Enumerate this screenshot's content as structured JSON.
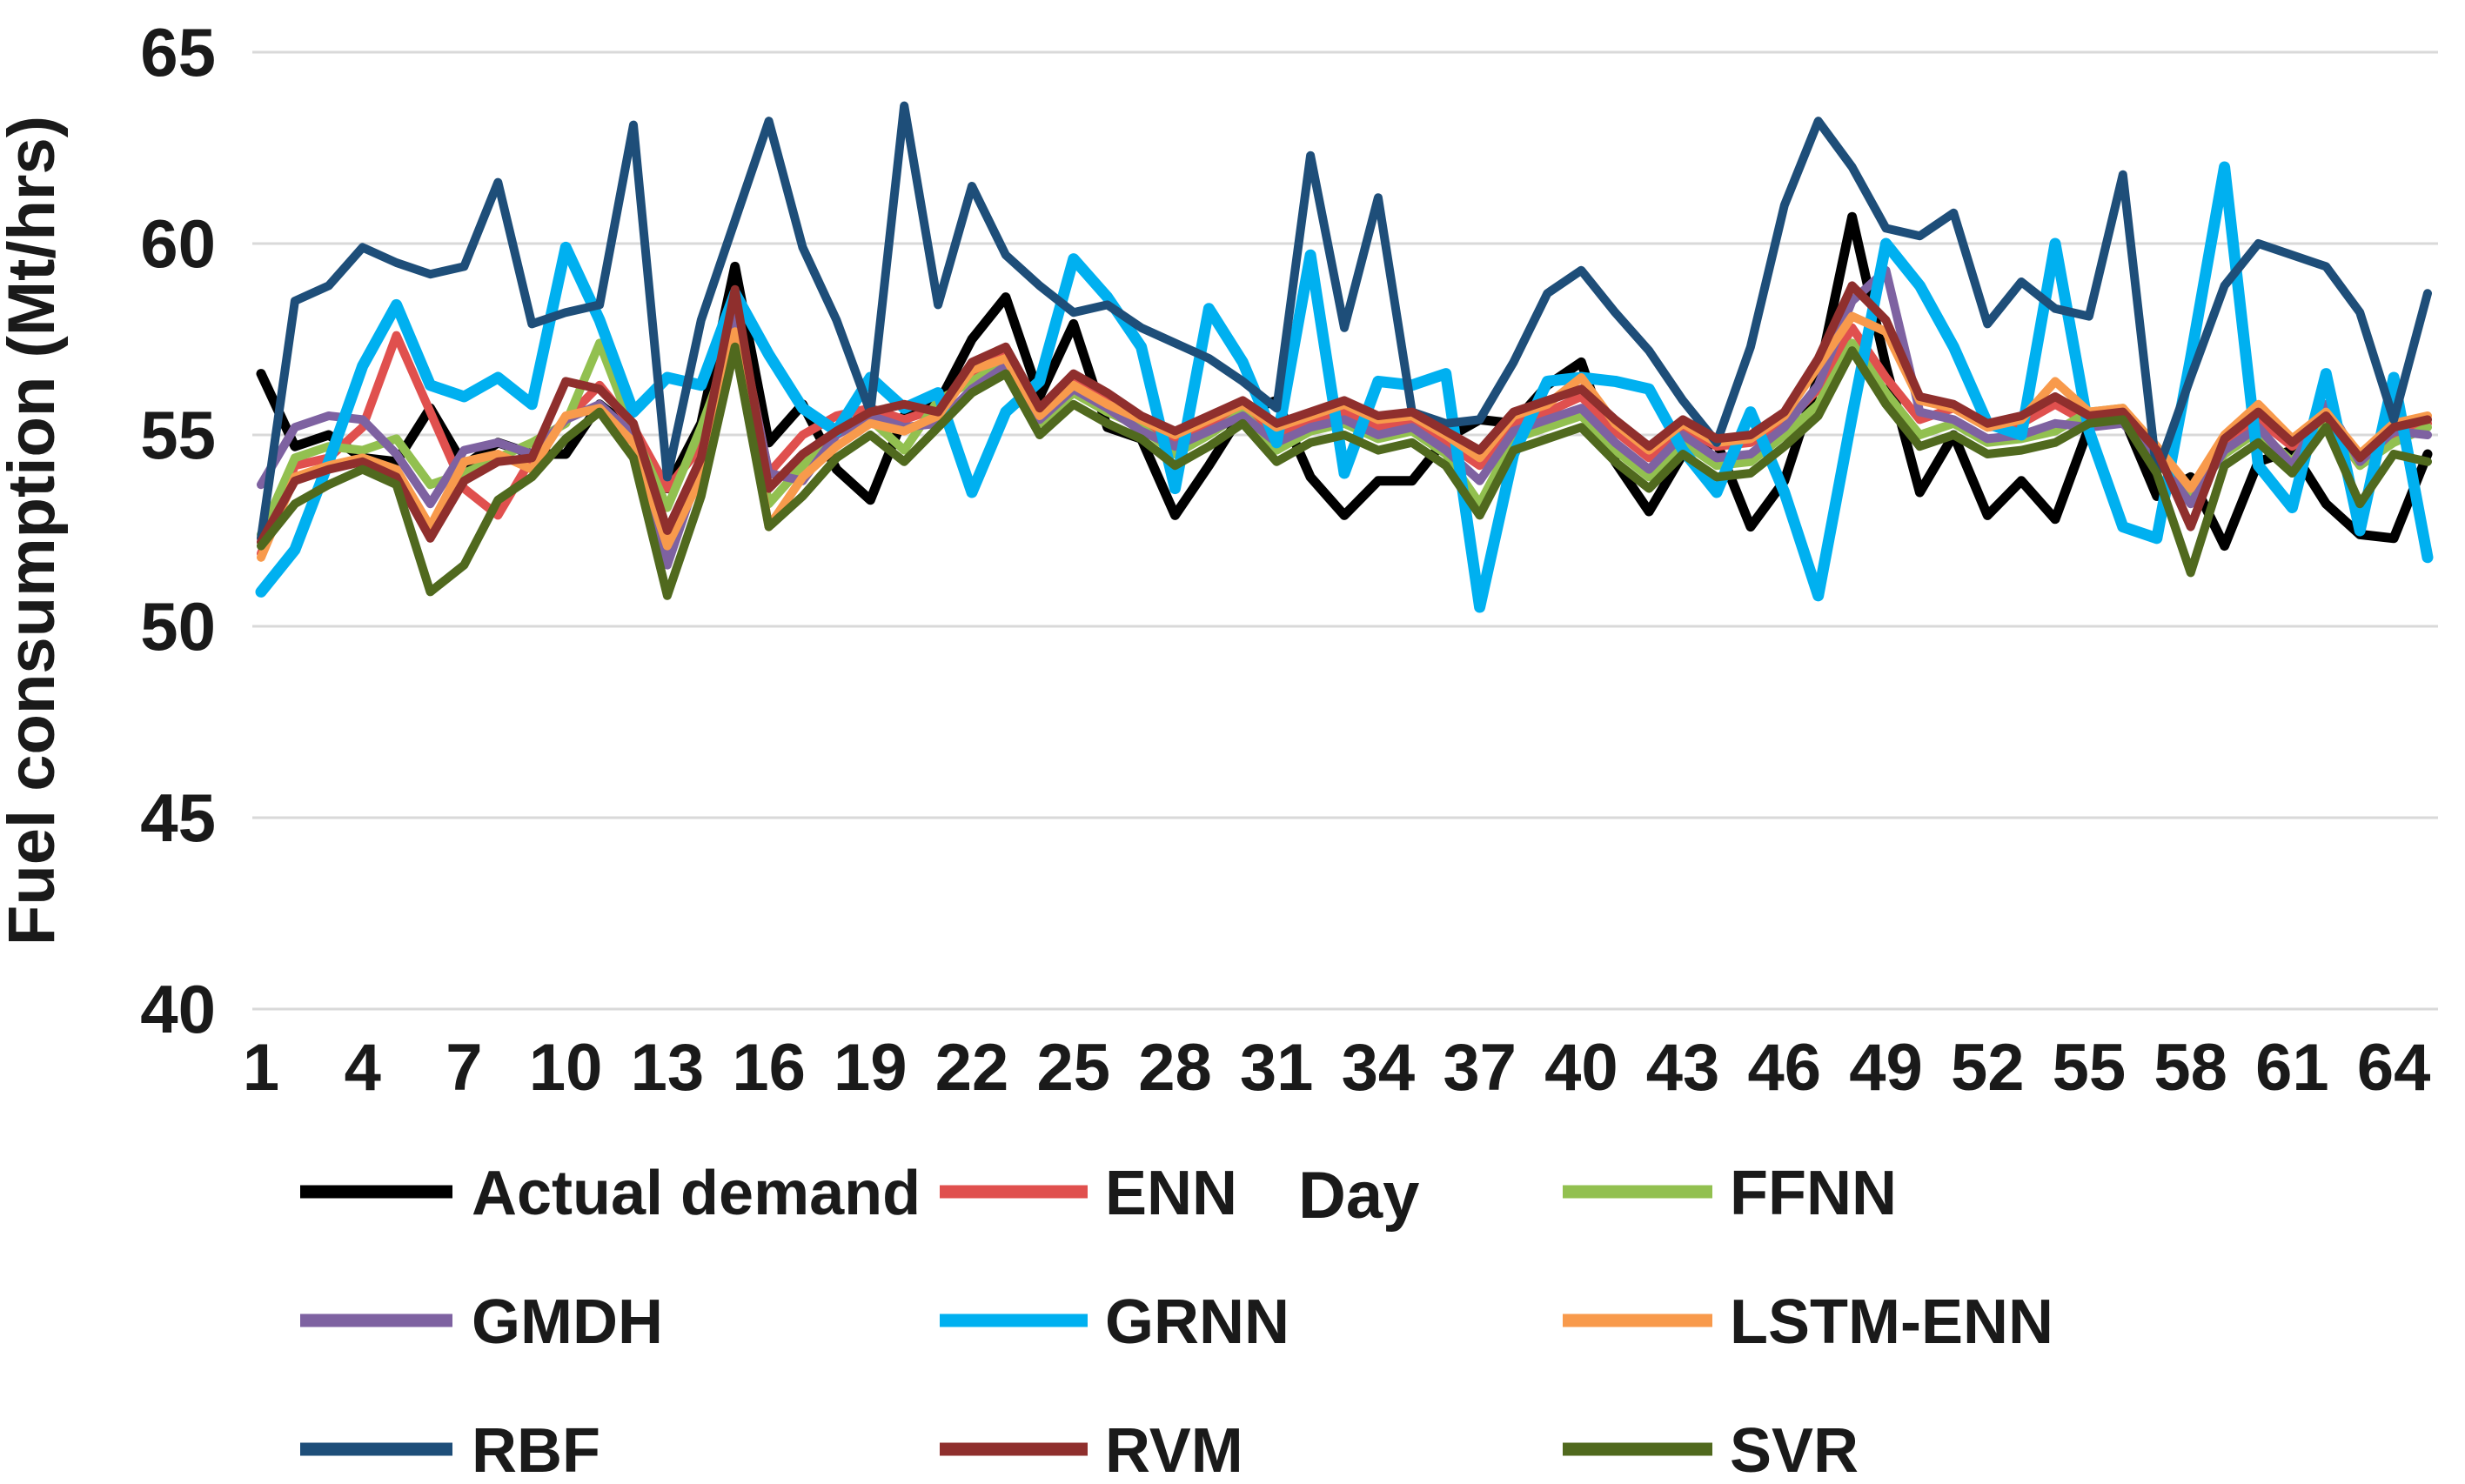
{
  "chart_data": {
    "type": "line",
    "title": "",
    "xlabel": "Day",
    "ylabel": "Fuel consumption (Mt/hrs)",
    "ylim": [
      40,
      65
    ],
    "yticks": [
      65,
      60,
      55,
      50,
      45,
      40
    ],
    "xticks": [
      1,
      4,
      7,
      10,
      13,
      16,
      19,
      22,
      25,
      28,
      31,
      34,
      37,
      40,
      43,
      46,
      49,
      52,
      55,
      58,
      61,
      64
    ],
    "x_start": 1,
    "x_end": 65,
    "grid": "horizontal-only",
    "legend_position": "bottom",
    "grid_color": "#d9d9d9",
    "series": [
      {
        "name": "Actual demand",
        "color": "#000000",
        "width": 11,
        "values": [
          56.6,
          54.7,
          55.0,
          54.4,
          54.3,
          55.7,
          54.2,
          54.8,
          54.5,
          54.5,
          55.8,
          55.1,
          53.6,
          55.3,
          59.4,
          54.8,
          55.8,
          54.1,
          53.3,
          55.5,
          55.8,
          57.5,
          58.6,
          56.0,
          57.9,
          55.2,
          54.9,
          52.9,
          54.2,
          55.6,
          55.9,
          53.9,
          52.9,
          53.8,
          53.8,
          54.9,
          55.4,
          55.3,
          56.3,
          56.9,
          54.3,
          53.0,
          54.5,
          54.8,
          52.6,
          53.8,
          56.5,
          60.7,
          56.8,
          53.5,
          55.0,
          52.9,
          53.8,
          52.8,
          55.2,
          55.5,
          53.4,
          53.9,
          52.1,
          54.3,
          54.6,
          53.2,
          52.4,
          52.3,
          54.5
        ]
      },
      {
        "name": "ENN",
        "color": "#E0504E",
        "width": 10,
        "values": [
          51.9,
          54.2,
          54.4,
          55.2,
          57.6,
          55.6,
          53.6,
          52.9,
          54.4,
          55.4,
          56.3,
          55.2,
          53.6,
          54.7,
          58.4,
          54.0,
          55.0,
          55.5,
          55.7,
          55.4,
          55.7,
          56.6,
          57.2,
          55.6,
          56.5,
          56.0,
          55.3,
          54.9,
          55.2,
          55.6,
          55.0,
          55.3,
          55.6,
          55.2,
          55.3,
          54.8,
          54.2,
          55.3,
          55.6,
          56.0,
          55.1,
          54.4,
          55.2,
          54.7,
          54.8,
          55.3,
          56.2,
          57.8,
          56.5,
          55.4,
          55.7,
          55.2,
          55.3,
          55.8,
          55.3,
          55.4,
          54.5,
          53.3,
          54.8,
          55.4,
          54.7,
          55.4,
          54.2,
          55.0,
          55.3
        ]
      },
      {
        "name": "FFNN",
        "color": "#92C050",
        "width": 10,
        "values": [
          52.4,
          54.4,
          54.7,
          54.6,
          54.9,
          53.7,
          54.0,
          54.4,
          54.8,
          55.3,
          57.4,
          55.1,
          53.1,
          55.2,
          57.6,
          53.2,
          54.2,
          55.1,
          55.4,
          54.6,
          55.9,
          56.4,
          56.9,
          55.3,
          56.1,
          55.6,
          55.2,
          54.5,
          55.0,
          55.6,
          54.6,
          55.1,
          55.3,
          54.9,
          55.1,
          54.5,
          53.2,
          54.9,
          55.2,
          55.5,
          54.6,
          53.9,
          54.8,
          54.2,
          54.3,
          55.0,
          55.8,
          57.4,
          56.1,
          55.0,
          55.3,
          54.8,
          54.9,
          55.1,
          55.6,
          55.7,
          54.3,
          53.4,
          54.5,
          55.1,
          54.3,
          55.5,
          54.2,
          54.8,
          55.2
        ]
      },
      {
        "name": "GMDH",
        "color": "#7E62A1",
        "width": 10,
        "values": [
          53.7,
          55.2,
          55.5,
          55.4,
          54.5,
          53.2,
          54.6,
          54.8,
          54.5,
          55.4,
          55.8,
          55.0,
          51.6,
          54.2,
          58.3,
          54.0,
          53.8,
          55.0,
          55.5,
          55.2,
          55.3,
          56.2,
          56.8,
          55.4,
          56.2,
          55.7,
          55.1,
          54.7,
          55.1,
          55.5,
          54.8,
          55.2,
          55.4,
          55.0,
          55.2,
          54.6,
          53.8,
          55.1,
          55.4,
          55.7,
          54.8,
          54.1,
          55.0,
          54.4,
          54.5,
          55.2,
          56.3,
          58.5,
          59.3,
          55.6,
          55.4,
          54.9,
          55.0,
          55.3,
          55.2,
          55.3,
          54.4,
          53.2,
          54.6,
          55.2,
          54.2,
          55.8,
          54.3,
          55.1,
          55.0
        ]
      },
      {
        "name": "GRNN",
        "color": "#00B0F0",
        "width": 13,
        "values": [
          50.9,
          52.0,
          54.3,
          56.8,
          58.4,
          56.3,
          56.0,
          56.5,
          55.8,
          59.9,
          58.0,
          55.6,
          56.5,
          56.3,
          58.7,
          57.1,
          55.7,
          55.1,
          56.5,
          55.7,
          56.1,
          53.5,
          55.6,
          56.4,
          59.6,
          58.6,
          57.3,
          53.6,
          58.3,
          56.9,
          54.8,
          59.7,
          54.0,
          56.4,
          56.3,
          56.6,
          50.5,
          54.5,
          56.4,
          56.5,
          56.4,
          56.2,
          54.6,
          53.5,
          55.6,
          53.5,
          50.8,
          55.5,
          60.0,
          58.9,
          57.3,
          55.3,
          55.0,
          60.0,
          55.1,
          52.6,
          52.3,
          57.0,
          62.0,
          54.2,
          53.1,
          56.6,
          52.5,
          56.5,
          51.8
        ]
      },
      {
        "name": "LSTM-ENN",
        "color": "#F89A4C",
        "width": 10,
        "values": [
          51.8,
          53.9,
          54.2,
          54.4,
          54.1,
          52.6,
          54.3,
          54.5,
          54.1,
          55.5,
          55.7,
          54.8,
          52.1,
          53.9,
          57.7,
          52.6,
          53.9,
          54.7,
          55.3,
          55.1,
          55.5,
          56.7,
          57.0,
          55.5,
          56.3,
          55.8,
          55.4,
          55.0,
          55.4,
          55.8,
          55.2,
          55.5,
          55.8,
          55.4,
          55.5,
          55.0,
          54.4,
          55.5,
          55.8,
          56.5,
          55.3,
          54.6,
          55.3,
          54.8,
          54.9,
          55.5,
          56.8,
          58.1,
          57.7,
          55.9,
          55.7,
          55.2,
          55.4,
          56.4,
          55.6,
          55.7,
          54.7,
          53.6,
          55.0,
          55.8,
          54.9,
          55.6,
          54.5,
          55.3,
          55.5
        ]
      },
      {
        "name": "RBF",
        "color": "#1E4E79",
        "width": 10,
        "values": [
          52.3,
          58.5,
          58.9,
          59.9,
          59.5,
          59.2,
          59.4,
          61.6,
          57.9,
          58.2,
          58.4,
          63.1,
          53.9,
          58.0,
          60.6,
          63.2,
          59.9,
          58.0,
          55.6,
          63.6,
          58.4,
          61.5,
          59.7,
          58.9,
          58.2,
          58.4,
          57.8,
          57.4,
          57.0,
          56.4,
          55.7,
          62.3,
          57.8,
          61.2,
          55.6,
          55.3,
          55.4,
          56.9,
          58.7,
          59.3,
          58.2,
          57.2,
          55.9,
          54.8,
          57.3,
          61.0,
          63.2,
          62.0,
          60.4,
          60.2,
          60.8,
          57.9,
          59.0,
          58.3,
          58.1,
          61.8,
          54.0,
          56.5,
          58.9,
          60.0,
          59.7,
          59.4,
          58.2,
          55.4,
          58.7
        ]
      },
      {
        "name": "RVM",
        "color": "#8F2F2D",
        "width": 10,
        "values": [
          52.2,
          53.8,
          54.1,
          54.3,
          53.9,
          52.3,
          53.8,
          54.3,
          54.4,
          56.4,
          56.2,
          55.3,
          52.5,
          54.4,
          58.8,
          53.6,
          54.5,
          55.1,
          55.6,
          55.8,
          55.6,
          56.9,
          57.3,
          55.7,
          56.6,
          56.1,
          55.5,
          55.1,
          55.5,
          55.9,
          55.3,
          55.6,
          55.9,
          55.5,
          55.6,
          55.1,
          54.6,
          55.6,
          55.9,
          56.2,
          55.4,
          54.7,
          55.4,
          54.9,
          55.0,
          55.6,
          57.0,
          58.9,
          58.0,
          56.0,
          55.8,
          55.3,
          55.5,
          56.0,
          55.5,
          55.6,
          54.6,
          52.6,
          54.9,
          55.6,
          54.8,
          55.5,
          54.4,
          55.2,
          55.4
        ]
      },
      {
        "name": "SVR",
        "color": "#50691E",
        "width": 10,
        "values": [
          52.1,
          53.2,
          53.7,
          54.1,
          53.7,
          50.9,
          51.6,
          53.3,
          53.9,
          54.9,
          55.6,
          54.4,
          50.8,
          53.4,
          57.3,
          52.6,
          53.4,
          54.4,
          55.0,
          54.3,
          55.2,
          56.1,
          56.6,
          55.0,
          55.8,
          55.3,
          54.9,
          54.2,
          54.7,
          55.3,
          54.3,
          54.8,
          55.0,
          54.6,
          54.8,
          54.2,
          52.9,
          54.6,
          54.9,
          55.2,
          54.3,
          53.6,
          54.5,
          53.9,
          54.0,
          54.7,
          55.5,
          57.2,
          55.8,
          54.7,
          55.0,
          54.5,
          54.6,
          54.8,
          55.3,
          55.4,
          54.0,
          51.4,
          54.2,
          54.8,
          54.0,
          55.2,
          53.2,
          54.5,
          54.3
        ]
      }
    ]
  }
}
